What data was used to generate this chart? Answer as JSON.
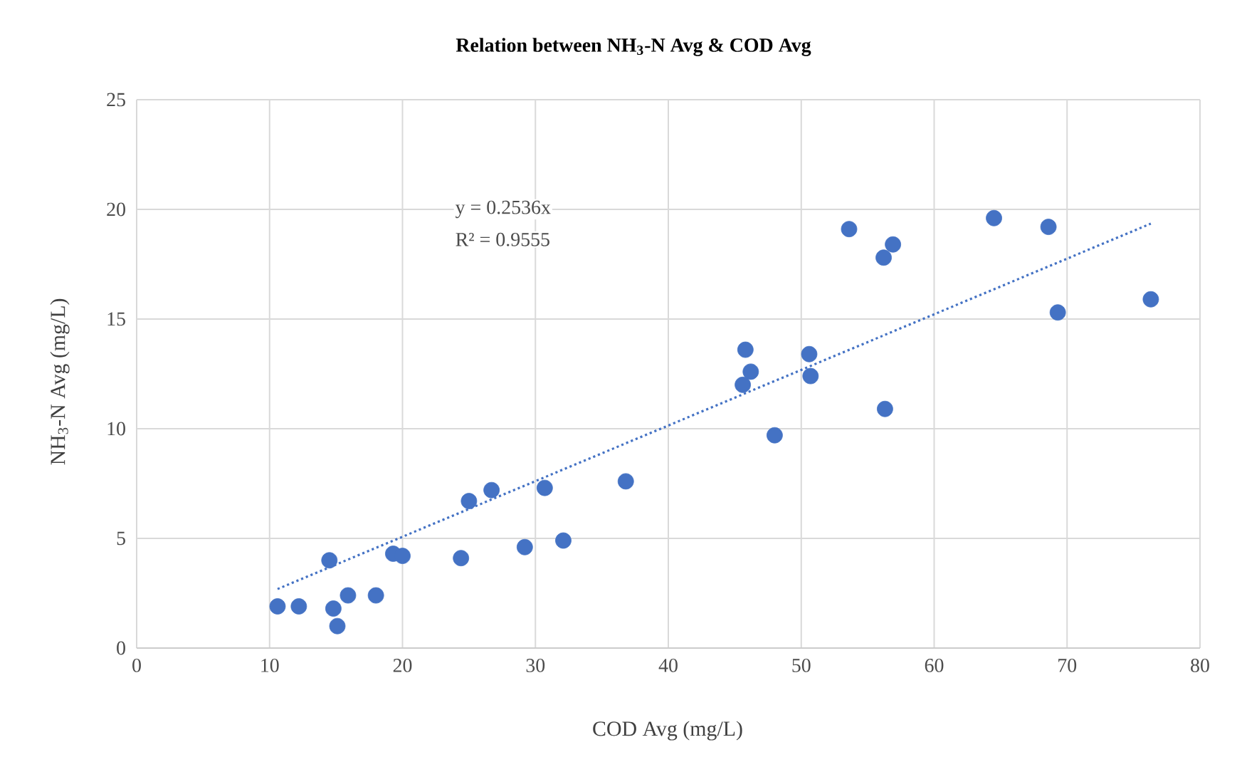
{
  "chart_data": {
    "type": "scatter",
    "title": "Relation between NH$_{3}$-N Avg & COD Avg",
    "xlabel": "COD Avg (mg/L)",
    "ylabel": "NH$_{3}$-N Avg (mg/L)",
    "annotations": [
      "y = 0.2536x",
      "R² = 0.9555"
    ],
    "xlim": [
      0,
      80
    ],
    "xticks": [
      0,
      10,
      20,
      30,
      40,
      50,
      60,
      70,
      80
    ],
    "ylim": [
      0,
      25
    ],
    "yticks": [
      0,
      5,
      10,
      15,
      20,
      25
    ],
    "grid": true,
    "marker": "circle",
    "series": [
      {
        "color": "#4472c4",
        "x": [
          10.6,
          12.2,
          14.5,
          14.8,
          15.1,
          15.9,
          18.0,
          19.3,
          20.0,
          24.4,
          25.0,
          26.7,
          29.2,
          30.7,
          32.1,
          36.8,
          45.6,
          45.8,
          46.2,
          48.0,
          50.6,
          50.7,
          53.6,
          56.2,
          56.3,
          56.9,
          64.5,
          68.6,
          69.3,
          76.3
        ],
        "values": [
          1.9,
          1.9,
          4.0,
          1.8,
          1.0,
          2.4,
          2.4,
          4.3,
          4.2,
          4.1,
          6.7,
          7.2,
          4.6,
          7.3,
          4.9,
          7.6,
          12.0,
          13.6,
          12.6,
          9.7,
          13.4,
          12.4,
          19.1,
          17.8,
          10.9,
          18.4,
          19.6,
          19.2,
          15.3,
          15.9
        ]
      },
      {
        "type": "line",
        "color": "#4472c4",
        "line_style": "dotted",
        "marker": "none",
        "x": [
          10.6,
          76.3
        ],
        "values": [
          2.69,
          19.35
        ]
      }
    ]
  }
}
